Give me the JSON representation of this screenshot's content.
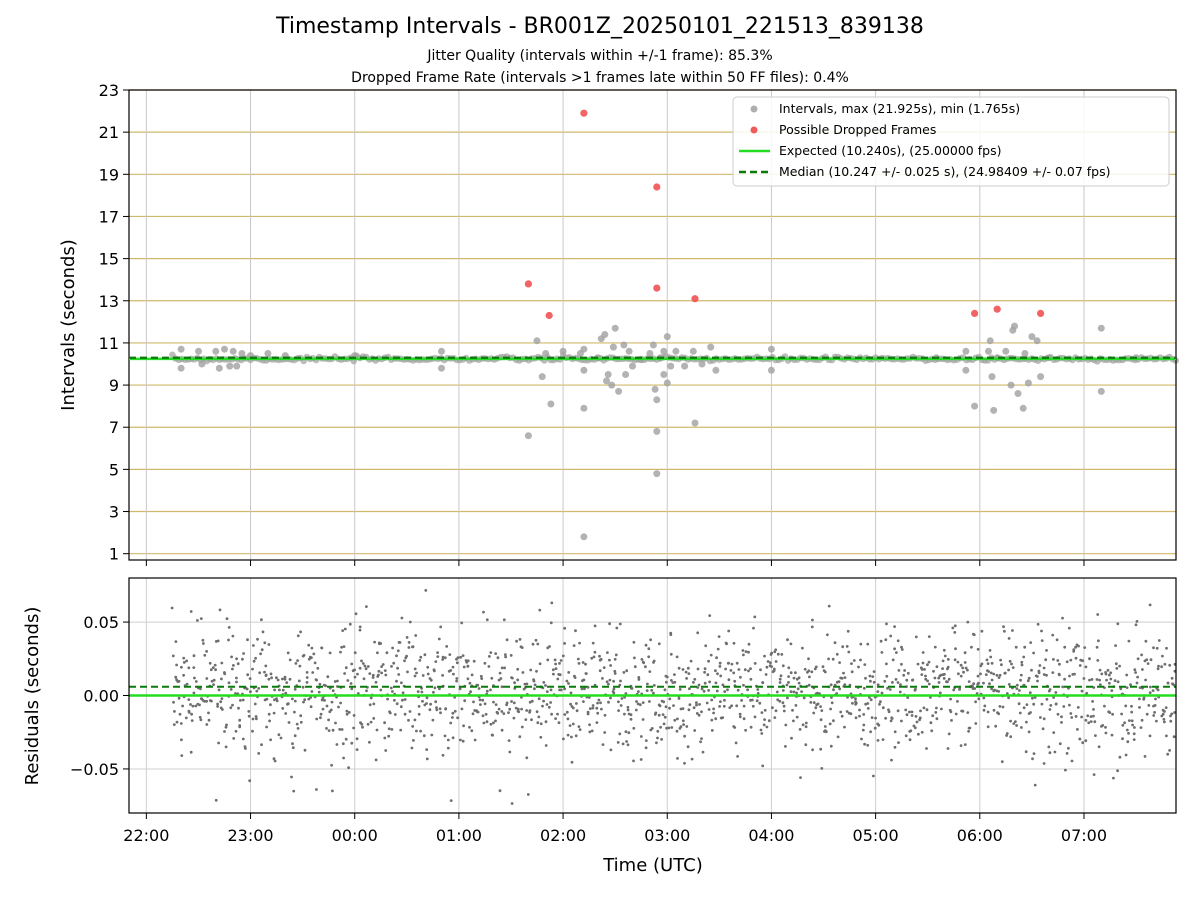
{
  "chart_data": [
    {
      "type": "scatter",
      "title": "Timestamp Intervals - BR001Z_20250101_221513_839138",
      "subtitle_lines": [
        "Jitter Quality (intervals within +/-1 frame): 85.3%",
        "Dropped Frame Rate (intervals >1 frames late within 50 FF files): 0.4%"
      ],
      "xlabel": "",
      "ylabel": "Intervals (seconds)",
      "x_range": [
        "21:50",
        "07:53"
      ],
      "ylim": [
        0.7,
        23
      ],
      "yticks": [
        1,
        3,
        5,
        7,
        9,
        11,
        13,
        15,
        17,
        19,
        21,
        23
      ],
      "grid": "on",
      "legend_position": "top-right",
      "colors": {
        "intervals": "#a0a0a0",
        "dropped": "#f04848",
        "expected": "#22dd22",
        "median": "#0a7a0a",
        "hgrid": "#d2b86a",
        "vgrid": "#c8c8c8"
      },
      "series": [
        {
          "name": "Intervals, max (21.925s), min (1.765s)",
          "kind": "scatter",
          "baseline": 10.24,
          "outliers": [
            [
              "22:20",
              10.7
            ],
            [
              "22:20",
              9.8
            ],
            [
              "22:30",
              10.6
            ],
            [
              "22:32",
              10.0
            ],
            [
              "22:40",
              10.6
            ],
            [
              "22:42",
              9.8
            ],
            [
              "22:45",
              10.7
            ],
            [
              "22:48",
              9.9
            ],
            [
              "22:50",
              10.6
            ],
            [
              "22:52",
              9.9
            ],
            [
              "22:55",
              10.5
            ],
            [
              "23:00",
              10.4
            ],
            [
              "23:10",
              10.5
            ],
            [
              "23:20",
              10.4
            ],
            [
              "00:00",
              10.4
            ],
            [
              "00:50",
              10.6
            ],
            [
              "00:50",
              9.8
            ],
            [
              "01:40",
              6.6
            ],
            [
              "01:45",
              11.1
            ],
            [
              "01:48",
              9.4
            ],
            [
              "01:53",
              8.1
            ],
            [
              "01:50",
              10.5
            ],
            [
              "02:00",
              10.6
            ],
            [
              "02:10",
              10.5
            ],
            [
              "02:12",
              9.7
            ],
            [
              "02:12",
              10.7
            ],
            [
              "02:12",
              7.9
            ],
            [
              "02:12",
              1.8
            ],
            [
              "02:20",
              10.3
            ],
            [
              "02:22",
              11.2
            ],
            [
              "02:24",
              11.4
            ],
            [
              "02:25",
              9.2
            ],
            [
              "02:26",
              9.5
            ],
            [
              "02:28",
              9.0
            ],
            [
              "02:29",
              10.8
            ],
            [
              "02:30",
              11.7
            ],
            [
              "02:32",
              8.7
            ],
            [
              "02:35",
              10.9
            ],
            [
              "02:36",
              9.5
            ],
            [
              "02:38",
              10.6
            ],
            [
              "02:40",
              9.9
            ],
            [
              "02:45",
              10.2
            ],
            [
              "02:50",
              10.5
            ],
            [
              "02:52",
              10.9
            ],
            [
              "02:53",
              8.8
            ],
            [
              "02:54",
              8.3
            ],
            [
              "02:54",
              6.8
            ],
            [
              "02:54",
              4.8
            ],
            [
              "02:56",
              10.3
            ],
            [
              "02:58",
              9.5
            ],
            [
              "02:58",
              10.6
            ],
            [
              "03:00",
              11.3
            ],
            [
              "03:00",
              9.1
            ],
            [
              "03:02",
              9.9
            ],
            [
              "03:05",
              10.6
            ],
            [
              "03:10",
              9.9
            ],
            [
              "03:15",
              10.6
            ],
            [
              "03:16",
              7.2
            ],
            [
              "03:20",
              10.0
            ],
            [
              "03:25",
              10.8
            ],
            [
              "03:28",
              9.7
            ],
            [
              "04:00",
              10.7
            ],
            [
              "04:00",
              9.7
            ],
            [
              "05:35",
              10.3
            ],
            [
              "05:52",
              10.6
            ],
            [
              "05:52",
              9.7
            ],
            [
              "05:57",
              8.0
            ],
            [
              "06:05",
              10.6
            ],
            [
              "06:06",
              11.1
            ],
            [
              "06:07",
              9.4
            ],
            [
              "06:08",
              7.8
            ],
            [
              "06:10",
              10.3
            ],
            [
              "06:15",
              10.6
            ],
            [
              "06:18",
              9.0
            ],
            [
              "06:19",
              11.6
            ],
            [
              "06:20",
              11.8
            ],
            [
              "06:22",
              8.6
            ],
            [
              "06:25",
              7.9
            ],
            [
              "06:26",
              10.5
            ],
            [
              "06:28",
              9.1
            ],
            [
              "06:30",
              11.3
            ],
            [
              "06:33",
              11.1
            ],
            [
              "06:35",
              9.4
            ],
            [
              "06:40",
              10.3
            ],
            [
              "07:10",
              11.7
            ],
            [
              "07:10",
              8.7
            ],
            [
              "07:30",
              10.3
            ]
          ]
        },
        {
          "name": "Possible Dropped Frames",
          "kind": "scatter",
          "points": [
            [
              "01:40",
              13.8
            ],
            [
              "01:52",
              12.3
            ],
            [
              "02:12",
              21.9
            ],
            [
              "02:54",
              18.4
            ],
            [
              "02:54",
              13.6
            ],
            [
              "03:16",
              13.1
            ],
            [
              "05:57",
              12.4
            ],
            [
              "06:10",
              12.6
            ],
            [
              "06:35",
              12.4
            ]
          ]
        },
        {
          "name": "Expected (10.240s), (25.00000 fps)",
          "kind": "hline",
          "y": 10.24
        },
        {
          "name": "Median (10.247 +/- 0.025 s), (24.98409 +/- 0.07 fps)",
          "kind": "hline-dashed",
          "y": 10.247
        }
      ]
    },
    {
      "type": "scatter",
      "title": "",
      "xlabel": "Time (UTC)",
      "ylabel": "Residuals (seconds)",
      "x_range": [
        "21:50",
        "07:53"
      ],
      "ylim": [
        -0.08,
        0.08
      ],
      "yticks": [
        0.05,
        0.0,
        -0.05
      ],
      "ytick_labels": [
        "0.05",
        "0.00",
        "−0.05"
      ],
      "xticks": [
        "22:00",
        "23:00",
        "00:00",
        "01:00",
        "02:00",
        "03:00",
        "04:00",
        "05:00",
        "06:00",
        "07:00"
      ],
      "grid": "on",
      "colors": {
        "residuals": "#6e6e6e",
        "zero": "#22dd22",
        "median": "#0a7a0a"
      },
      "series": [
        {
          "name": "",
          "kind": "scatter-cloud",
          "x_start": "22:15",
          "x_end": "07:53",
          "center": 0.003,
          "spread": 0.022
        },
        {
          "name": "",
          "kind": "hline",
          "y": 0.0
        },
        {
          "name": "",
          "kind": "hline-dashed",
          "y": 0.006
        }
      ]
    }
  ]
}
